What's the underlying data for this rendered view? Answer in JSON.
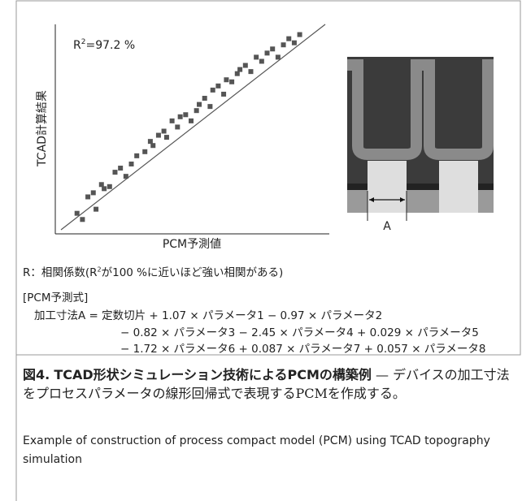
{
  "chart_data": {
    "type": "scatter",
    "title_parts": [
      "R",
      "2",
      "=97.2 %"
    ],
    "x_label": "PCM予測値",
    "y_label": "TCAD計算結果",
    "x": [
      8,
      10,
      12,
      14,
      15,
      17,
      18,
      20,
      22,
      24,
      26,
      28,
      30,
      33,
      35,
      36,
      38,
      40,
      41,
      43,
      45,
      46,
      48,
      50,
      52,
      53,
      55,
      57,
      58,
      60,
      62,
      63,
      65,
      67,
      68,
      70,
      72,
      74,
      76,
      78,
      80,
      82,
      84,
      86,
      88,
      90
    ],
    "y": [
      10,
      7,
      18,
      20,
      12,
      24,
      22,
      23,
      30,
      32,
      28,
      34,
      38,
      40,
      45,
      43,
      48,
      50,
      47,
      55,
      52,
      57,
      58,
      55,
      60,
      63,
      66,
      62,
      70,
      72,
      68,
      75,
      74,
      78,
      80,
      82,
      79,
      86,
      84,
      88,
      90,
      86,
      92,
      95,
      93,
      97
    ],
    "xlim": [
      0,
      100
    ],
    "ylim": [
      0,
      100
    ],
    "color": "#555555"
  },
  "diagram": {
    "label": "A"
  },
  "notes": {
    "correlation": [
      "R：相関係数(R",
      "2",
      "が100 %に近いほど強い相関がある)"
    ],
    "formula_heading": "[PCM予測式]",
    "formula_lines": [
      "加工寸法A = 定数切片 + 1.07 × パラメータ1 − 0.97 × パラメータ2",
      "− 0.82 × パラメータ3 − 2.45 × パラメータ4 + 0.029 × パラメータ5",
      "− 1.72 × パラメータ6 + 0.087 × パラメータ7 + 0.057 × パラメータ8"
    ]
  },
  "caption": {
    "figure_label": "図4.",
    "title": "TCAD形状シミュレーション技術によるPCMの構築例",
    "description": "— デバイスの加工寸法をプロセスパラメータの線形回帰式で表現するPCMを作成する。",
    "english": "Example of construction of process compact model (PCM) using TCAD topography simulation"
  }
}
